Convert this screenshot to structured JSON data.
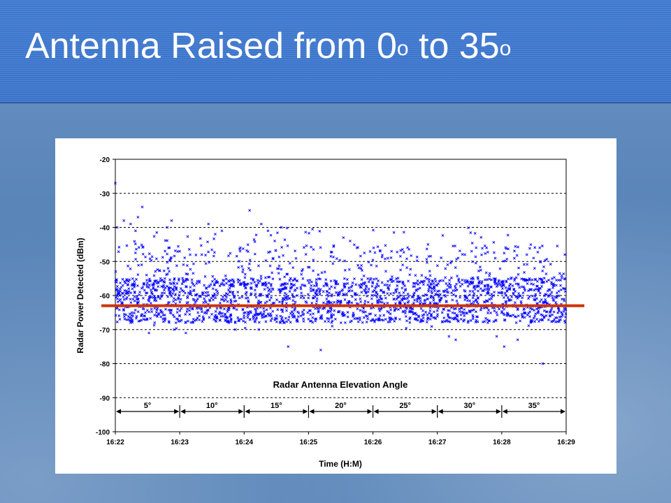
{
  "slide": {
    "title_main": "Antenna Raised from 0",
    "title_sup1": "o",
    "title_mid": " to 35",
    "title_sup2": "o",
    "accent_color": "#3a74cc"
  },
  "chart_data": {
    "type": "scatter",
    "title": "",
    "xlabel": "Time (H:M)",
    "ylabel": "Radar Power Detected (dBm)",
    "x_ticks": [
      "16:22",
      "16:23",
      "16:24",
      "16:25",
      "16:26",
      "16:27",
      "16:28",
      "16:29"
    ],
    "xlim": [
      "16:22",
      "16:29"
    ],
    "y_ticks": [
      -20,
      -30,
      -40,
      -50,
      -60,
      -70,
      -80,
      -90,
      -100
    ],
    "ylim": [
      -100,
      -20
    ],
    "grid": "horizontal dashed",
    "marker": "x",
    "series_color": "#0000ff",
    "reference_line": {
      "y": -63,
      "color": "#cc3300"
    },
    "annotation": {
      "text": "Radar Antenna Elevation Angle",
      "segments": [
        {
          "label": "5°",
          "start": "16:22",
          "end": "16:23"
        },
        {
          "label": "10°",
          "start": "16:23",
          "end": "16:24"
        },
        {
          "label": "15°",
          "start": "16:24",
          "end": "16:25"
        },
        {
          "label": "20°",
          "start": "16:25",
          "end": "16:26"
        },
        {
          "label": "25°",
          "start": "16:26",
          "end": "16:27"
        },
        {
          "label": "30°",
          "start": "16:27",
          "end": "16:28"
        },
        {
          "label": "35°",
          "start": "16:28",
          "end": "16:29"
        }
      ]
    },
    "series": [
      {
        "points": [
          [
            "16:22",
            -27
          ],
          [
            "16:22",
            -37
          ],
          [
            "16:22",
            -55
          ],
          [
            "16:22",
            -62
          ],
          [
            "16:22",
            -66
          ],
          [
            "16:22",
            -40
          ],
          [
            "16:22",
            -58
          ],
          [
            "16:22",
            -64
          ],
          [
            "16:22",
            -70
          ],
          [
            "16:22",
            -41
          ],
          [
            "16:22",
            -56
          ],
          [
            "16:22",
            -60
          ],
          [
            "16:22",
            -34
          ],
          [
            "16:22",
            -55
          ],
          [
            "16:22",
            -61
          ],
          [
            "16:22",
            -71
          ],
          [
            "16:22",
            -38
          ],
          [
            "16:22",
            -57
          ],
          [
            "16:22",
            -63
          ],
          [
            "16:22",
            -40
          ],
          [
            "16:22",
            -59
          ],
          [
            "16:22",
            -65
          ],
          [
            "16:22",
            -38
          ],
          [
            "16:22",
            -54
          ],
          [
            "16:22",
            -62
          ],
          [
            "16:22",
            -39
          ],
          [
            "16:22",
            -58
          ],
          [
            "16:22",
            -68
          ],
          [
            "16:23",
            -48
          ],
          [
            "16:23",
            -60
          ],
          [
            "16:23",
            -71
          ],
          [
            "16:23",
            -39
          ],
          [
            "16:23",
            -57
          ],
          [
            "16:23",
            -64
          ],
          [
            "16:23",
            -42
          ],
          [
            "16:23",
            -59
          ],
          [
            "16:23",
            -66
          ],
          [
            "16:23",
            -41
          ],
          [
            "16:23",
            -56
          ],
          [
            "16:23",
            -62
          ],
          [
            "16:23",
            -68
          ],
          [
            "16:23",
            -48
          ],
          [
            "16:23",
            -60
          ],
          [
            "16:23",
            -70
          ],
          [
            "16:24",
            -39
          ],
          [
            "16:24",
            -58
          ],
          [
            "16:24",
            -65
          ],
          [
            "16:24",
            -41
          ],
          [
            "16:24",
            -55
          ],
          [
            "16:24",
            -63
          ],
          [
            "16:24",
            -44
          ],
          [
            "16:24",
            -60
          ],
          [
            "16:24",
            -70
          ],
          [
            "16:24",
            -40
          ],
          [
            "16:24",
            -57
          ],
          [
            "16:24",
            -66
          ],
          [
            "16:24",
            -75
          ],
          [
            "16:24",
            -35
          ],
          [
            "16:24",
            -58
          ],
          [
            "16:24",
            -64
          ],
          [
            "16:25",
            -76
          ],
          [
            "16:25",
            -43
          ],
          [
            "16:25",
            -59
          ],
          [
            "16:25",
            -65
          ],
          [
            "16:25",
            -44
          ],
          [
            "16:25",
            -56
          ],
          [
            "16:25",
            -62
          ],
          [
            "16:25",
            -46
          ],
          [
            "16:25",
            -58
          ],
          [
            "16:25",
            -68
          ],
          [
            "16:26",
            -45
          ],
          [
            "16:26",
            -57
          ],
          [
            "16:26",
            -64
          ],
          [
            "16:26",
            -46
          ],
          [
            "16:26",
            -59
          ],
          [
            "16:26",
            -66
          ],
          [
            "16:26",
            -47
          ],
          [
            "16:26",
            -56
          ],
          [
            "16:26",
            -63
          ],
          [
            "16:27",
            -50
          ],
          [
            "16:27",
            -60
          ],
          [
            "16:27",
            -72
          ],
          [
            "16:27",
            -49
          ],
          [
            "16:27",
            -58
          ],
          [
            "16:27",
            -65
          ],
          [
            "16:27",
            -48
          ],
          [
            "16:27",
            -57
          ],
          [
            "16:27",
            -72
          ],
          [
            "16:27",
            -47
          ],
          [
            "16:27",
            -59
          ],
          [
            "16:27",
            -73
          ],
          [
            "16:28",
            -80
          ],
          [
            "16:28",
            -75
          ],
          [
            "16:28",
            -48
          ],
          [
            "16:28",
            -60
          ],
          [
            "16:28",
            -66
          ],
          [
            "16:28",
            -49
          ],
          [
            "16:28",
            -57
          ],
          [
            "16:28",
            -73
          ],
          [
            "16:28",
            -50
          ],
          [
            "16:28",
            -59
          ],
          [
            "16:28",
            -65
          ],
          [
            "16:29",
            -48
          ],
          [
            "16:29",
            -58
          ],
          [
            "16:29",
            -64
          ]
        ]
      }
    ]
  }
}
